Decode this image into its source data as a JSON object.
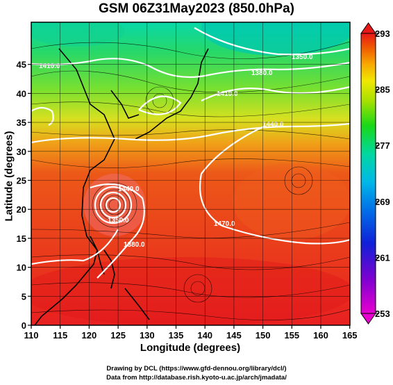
{
  "title": "GSM 06Z31May2023 (850.0hPa)",
  "x_axis": {
    "label": "Longitude (degrees)",
    "ticks": [
      "110",
      "115",
      "120",
      "125",
      "130",
      "135",
      "140",
      "145",
      "150",
      "155",
      "160",
      "165"
    ]
  },
  "y_axis": {
    "label": "Latitude (degrees)",
    "ticks": [
      "0",
      "5",
      "10",
      "15",
      "20",
      "25",
      "30",
      "35",
      "40",
      "45"
    ]
  },
  "colorbar": {
    "ticks": [
      "293",
      "285",
      "277",
      "269",
      "261",
      "253"
    ],
    "colors": [
      "#d800d8",
      "#7000c8",
      "#1820d8",
      "#0070e8",
      "#00b8e8",
      "#00d8a0",
      "#18d818",
      "#a0e000",
      "#f0e800",
      "#f8b000",
      "#f06000",
      "#e81818"
    ]
  },
  "contour_labels": [
    "1350.0",
    "1380.0",
    "1410.0",
    "1410.0",
    "1440.0",
    "1440.0",
    "1470.0",
    "1380.0",
    "1350.0"
  ],
  "footer": {
    "line1": "Drawing by DCL (https://www.gfd-dennou.org/library/dcl/)",
    "line2": "Data from http://database.rish.kyoto-u.ac.jp/arch/jmadata/"
  }
}
